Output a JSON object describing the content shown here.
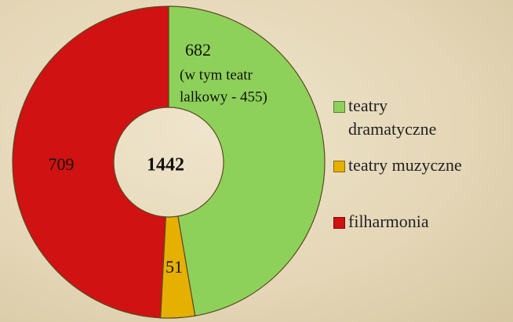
{
  "chart_data": {
    "type": "donut",
    "categories": [
      "teatry dramatyczne",
      "teatry muzyczne",
      "filharmonia"
    ],
    "values": [
      682,
      51,
      709
    ],
    "colors": [
      "#8ed15a",
      "#e6b000",
      "#d01212"
    ],
    "total": 1442,
    "annotation": [
      "(w tym teatr",
      "lalkowy - 455)"
    ],
    "legend": "right"
  }
}
